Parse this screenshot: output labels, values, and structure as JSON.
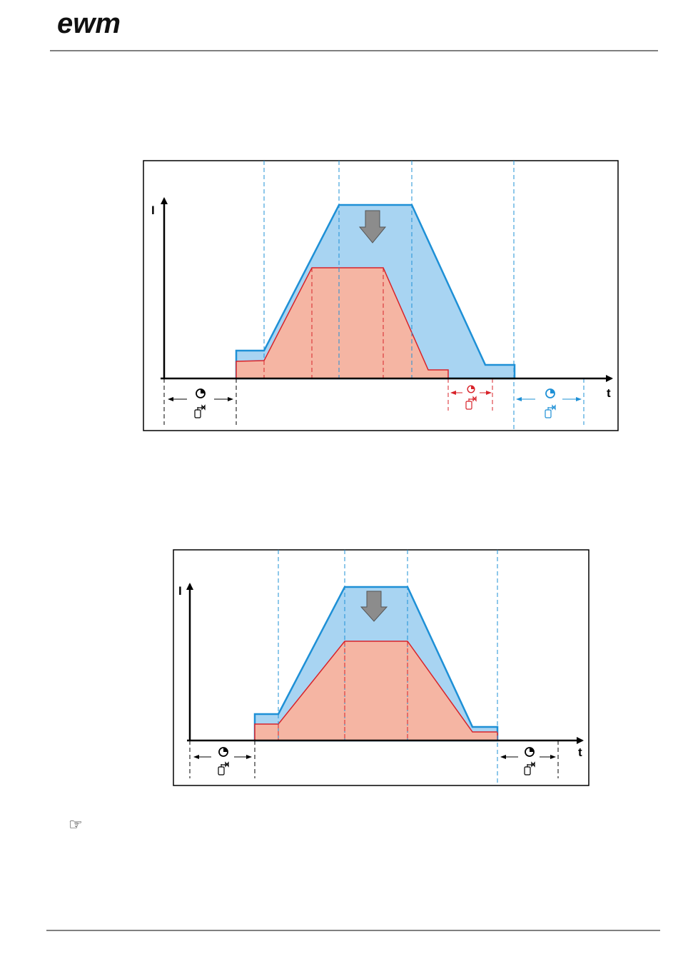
{
  "header": {
    "logo": "ewm"
  },
  "figures": [
    {
      "y_axis_label": "I",
      "x_axis_label": "t"
    },
    {
      "y_axis_label": "I",
      "x_axis_label": "t"
    }
  ],
  "note_icon": "☞"
}
